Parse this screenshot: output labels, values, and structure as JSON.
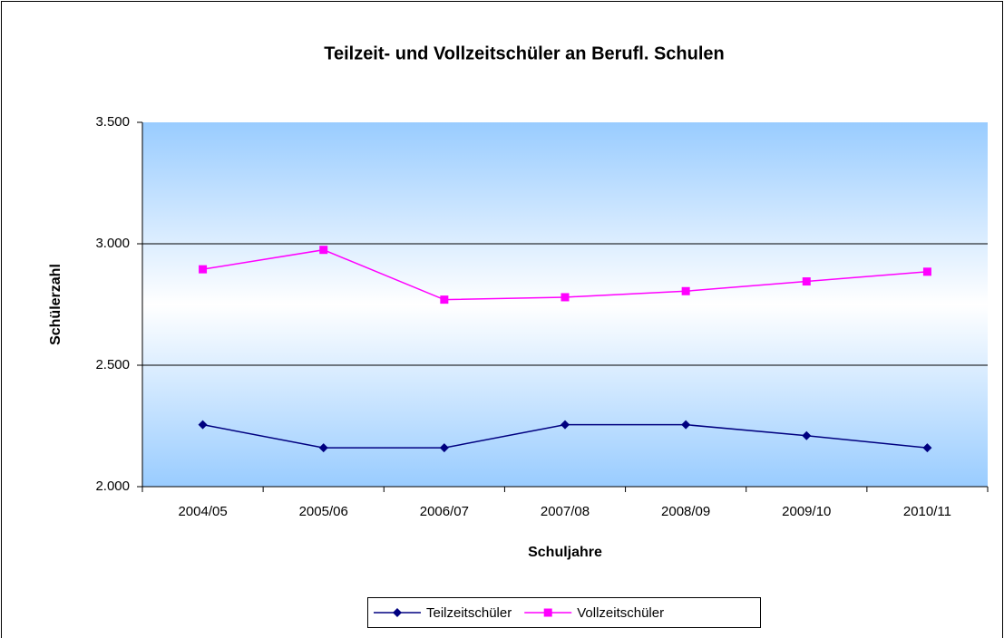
{
  "chart_data": {
    "type": "line",
    "title": "Teilzeit- und Vollzeitschüler an Berufl. Schulen",
    "x_label": "Schuljahre",
    "y_label": "Schülerzahl",
    "categories": [
      "2004/05",
      "2005/06",
      "2006/07",
      "2007/08",
      "2008/09",
      "2009/10",
      "2010/11"
    ],
    "series": [
      {
        "name": "Teilzeitschüler",
        "color": "#000080",
        "marker": "diamond",
        "values": [
          2255,
          2160,
          2160,
          2255,
          2255,
          2210,
          2160
        ]
      },
      {
        "name": "Vollzeitschüler",
        "color": "#ff00ff",
        "marker": "square",
        "values": [
          2895,
          2975,
          2770,
          2780,
          2805,
          2845,
          2885
        ]
      }
    ],
    "ylim": [
      2000,
      3500
    ],
    "yticks": [
      {
        "value": 2000,
        "label": "2.000"
      },
      {
        "value": 2500,
        "label": "2.500"
      },
      {
        "value": 3000,
        "label": "3.000"
      },
      {
        "value": 3500,
        "label": "3.500"
      }
    ],
    "grid": true,
    "legend": "bottom"
  }
}
